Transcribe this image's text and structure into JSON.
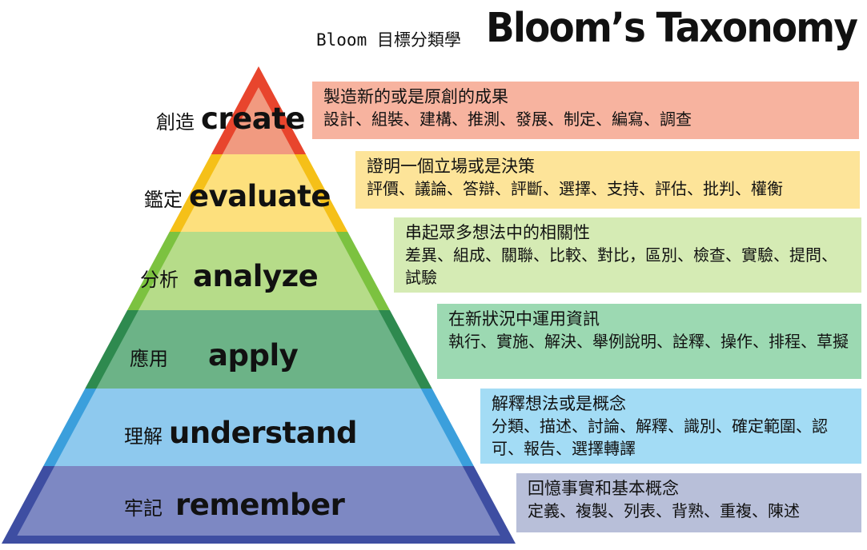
{
  "title": {
    "small": "Bloom 目標分類學",
    "big": "Bloom’s Taxonomy"
  },
  "levels": [
    {
      "zh": "創造",
      "en": "create",
      "color": "#f19a80",
      "edge": "#e8452d",
      "box": {
        "heading": "製造新的或是原創的成果",
        "desc": "設計、組裝、建構、推測、發展、制定、編寫、調查",
        "color": "#f7b39f"
      }
    },
    {
      "zh": "鑑定",
      "en": "evaluate",
      "color": "#fde07d",
      "edge": "#f5c018",
      "box": {
        "heading": "證明一個立場或是決策",
        "desc": "評價、議論、答辯、評斷、選擇、支持、評估、批判、權衡",
        "color": "#fde499"
      }
    },
    {
      "zh": "分析",
      "en": "analyze",
      "color": "#b6dc89",
      "edge": "#7cc240",
      "box": {
        "heading": "串起眾多想法中的相關性",
        "desc": "差異、組成、關聯、比較、對比，區別、檢查、實驗、提問、試驗",
        "color": "#d5ebb4"
      }
    },
    {
      "zh": "應用",
      "en": "apply",
      "color": "#6cb387",
      "edge": "#2e8a4f",
      "box": {
        "heading": "在新狀況中運用資訊",
        "desc": "執行、實施、解決、舉例說明、詮釋、操作、排程、草擬",
        "color": "#9cd9b2"
      }
    },
    {
      "zh": "理解",
      "en": "understand",
      "color": "#8ec9ee",
      "edge": "#3b9fdc",
      "box": {
        "heading": "解釋想法或是概念",
        "desc": "分類、描述、討論、解釋、識別、確定範圍、認可、報告、選擇轉譯",
        "color": "#a3dcf5"
      }
    },
    {
      "zh": "牢記",
      "en": "remember",
      "color": "#7d88c3",
      "edge": "#3e4ea2",
      "box": {
        "heading": "回憶事實和基本概念",
        "desc": "定義、複製、列表、背熟、重複、陳述",
        "color": "#b8bfd9"
      }
    }
  ]
}
